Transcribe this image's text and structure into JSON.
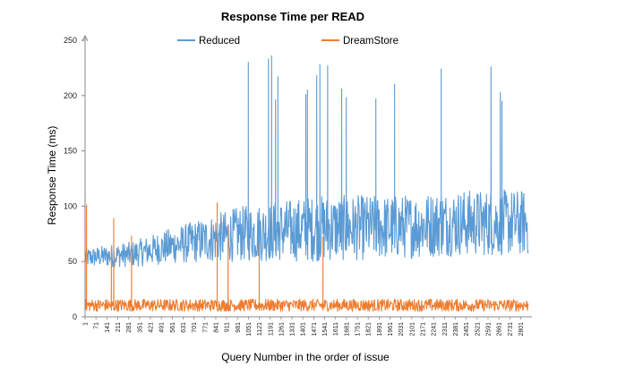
{
  "chart_data": {
    "type": "line",
    "title": "Response Time per READ",
    "xlabel": "Query Number in the order of issue",
    "ylabel": "Response Time (ms)",
    "xlim": [
      1,
      2850
    ],
    "ylim": [
      0,
      250
    ],
    "yticks": [
      0,
      50,
      100,
      150,
      200,
      250
    ],
    "xticks": [
      1,
      71,
      141,
      211,
      281,
      351,
      421,
      491,
      561,
      631,
      701,
      771,
      841,
      911,
      981,
      1051,
      1121,
      1191,
      1261,
      1331,
      1401,
      1471,
      1541,
      1611,
      1681,
      1751,
      1821,
      1891,
      1961,
      2031,
      2101,
      2171,
      2241,
      2311,
      2381,
      2451,
      2521,
      2591,
      2661,
      2731,
      2801
    ],
    "legend_position": "top",
    "grid": false,
    "series": [
      {
        "name": "Reduced",
        "color": "#5b9bd5",
        "baseline": [
          [
            1,
            45,
            62
          ],
          [
            300,
            45,
            68
          ],
          [
            550,
            48,
            80
          ],
          [
            1000,
            50,
            100
          ],
          [
            1500,
            50,
            110
          ],
          [
            2000,
            52,
            110
          ],
          [
            2400,
            55,
            115
          ],
          [
            2850,
            55,
            115
          ]
        ],
        "spikes": [
          [
            1050,
            230
          ],
          [
            1180,
            233
          ],
          [
            1200,
            236
          ],
          [
            1225,
            196
          ],
          [
            1240,
            217
          ],
          [
            1420,
            201
          ],
          [
            1430,
            205
          ],
          [
            1490,
            218
          ],
          [
            1510,
            228
          ],
          [
            1560,
            227
          ],
          [
            1650,
            206
          ],
          [
            1680,
            198
          ],
          [
            1870,
            197
          ],
          [
            1990,
            210
          ],
          [
            2290,
            224
          ],
          [
            2610,
            226
          ],
          [
            2670,
            203
          ],
          [
            2680,
            195
          ]
        ]
      },
      {
        "name": "DreamStore",
        "color": "#ed7d31",
        "baseline": [
          [
            1,
            5,
            16
          ],
          [
            2850,
            5,
            16
          ]
        ],
        "spikes": [
          [
            1,
            111
          ],
          [
            10,
            101
          ],
          [
            170,
            62
          ],
          [
            185,
            89
          ],
          [
            300,
            73
          ],
          [
            850,
            103
          ],
          [
            920,
            82
          ],
          [
            1120,
            65
          ],
          [
            1530,
            72
          ]
        ]
      }
    ]
  }
}
